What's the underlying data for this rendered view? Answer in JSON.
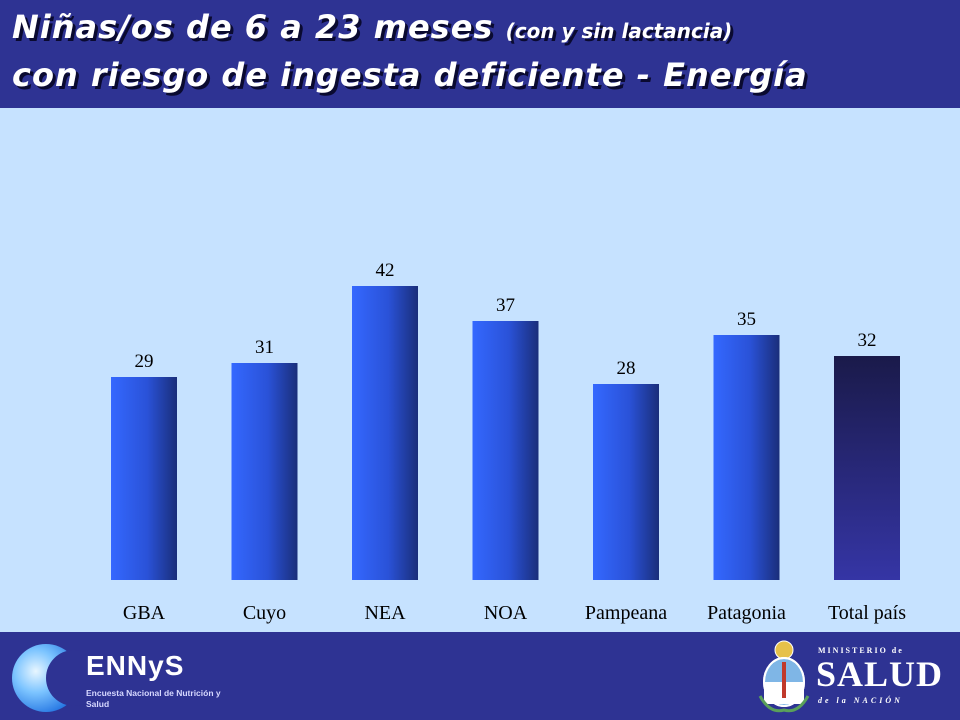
{
  "header": {
    "title_line1_main": "Niñas/os de 6 a 23 meses ",
    "title_line1_sub": "(con y sin lactancia)",
    "title_line2": "con riesgo de ingesta deficiente - Energía"
  },
  "chart_data": {
    "type": "bar",
    "title": "Niñas/os de 6 a 23 meses (con y sin lactancia) con riesgo de ingesta deficiente - Energía",
    "categories": [
      "GBA",
      "Cuyo",
      "NEA",
      "NOA",
      "Pampeana",
      "Patagonia",
      "Total país"
    ],
    "values": [
      29,
      31,
      42,
      37,
      28,
      35,
      32
    ],
    "ylim": [
      0,
      45
    ],
    "grid": false,
    "data_labels": true,
    "colors": {
      "regional_bar": "#2f5fe8",
      "regional_bar_dark": "#1a2e7a",
      "total_bar": "#1a1a50",
      "total_bar_light": "#3a3aa8",
      "background": "#c6e2ff"
    }
  },
  "footer": {
    "ennys_name": "ENNyS",
    "ennys_subtitle": "Encuesta Nacional de Nutrición y Salud",
    "ministry_top": "MINISTERIO de",
    "ministry_main": "SALUD",
    "ministry_bottom": "de la NACIÓN"
  }
}
